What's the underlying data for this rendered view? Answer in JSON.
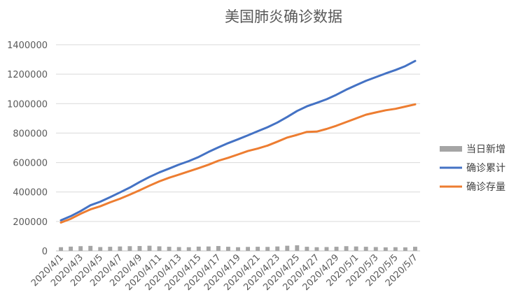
{
  "chart_data": {
    "type": "line",
    "title": "美国肺炎确诊数据",
    "xlabel": "",
    "ylabel": "",
    "ylim": [
      0,
      1400000
    ],
    "yticks": [
      0,
      200000,
      400000,
      600000,
      800000,
      1000000,
      1200000,
      1400000
    ],
    "ytick_labels": [
      "0",
      "200000",
      "400000",
      "600000",
      "800000",
      "1000000",
      "1200000",
      "1400000"
    ],
    "grid": "horizontal",
    "legend_position": "right",
    "x": [
      "2020/4/1",
      "2020/4/2",
      "2020/4/3",
      "2020/4/4",
      "2020/4/5",
      "2020/4/6",
      "2020/4/7",
      "2020/4/8",
      "2020/4/9",
      "2020/4/10",
      "2020/4/11",
      "2020/4/12",
      "2020/4/13",
      "2020/4/14",
      "2020/4/15",
      "2020/4/16",
      "2020/4/17",
      "2020/4/18",
      "2020/4/19",
      "2020/4/20",
      "2020/4/21",
      "2020/4/22",
      "2020/4/23",
      "2020/4/24",
      "2020/4/25",
      "2020/4/26",
      "2020/4/27",
      "2020/4/28",
      "2020/4/29",
      "2020/4/30",
      "2020/5/1",
      "2020/5/2",
      "2020/5/3",
      "2020/5/4",
      "2020/5/5",
      "2020/5/6",
      "2020/5/7"
    ],
    "x_tick_labels": [
      "2020/4/1",
      "2020/4/3",
      "2020/4/5",
      "2020/4/7",
      "2020/4/9",
      "2020/4/11",
      "2020/4/13",
      "2020/4/15",
      "2020/4/17",
      "2020/4/19",
      "2020/4/21",
      "2020/4/23",
      "2020/4/25",
      "2020/4/27",
      "2020/4/29",
      "2020/5/1",
      "2020/5/3",
      "2020/5/5",
      "2020/5/7"
    ],
    "series": [
      {
        "name": "当日新增",
        "type": "bar",
        "color": "#a5a5a5",
        "values": [
          25000,
          29000,
          32000,
          34000,
          26000,
          28000,
          30000,
          32000,
          33000,
          35000,
          31000,
          28000,
          26000,
          25000,
          29000,
          30000,
          33000,
          28000,
          25000,
          27000,
          28000,
          27000,
          30000,
          35000,
          38000,
          28000,
          25000,
          26000,
          28000,
          32000,
          30000,
          28000,
          26000,
          24000,
          25000,
          24000,
          28000
        ]
      },
      {
        "name": "确诊累计",
        "type": "line",
        "color": "#4472c4",
        "values": [
          208000,
          236000,
          270000,
          310000,
          334000,
          365000,
          397000,
          430000,
          468000,
          502000,
          533000,
          559000,
          586000,
          610000,
          638000,
          672000,
          703000,
          732000,
          758000,
          785000,
          813000,
          840000,
          872000,
          910000,
          950000,
          982000,
          1005000,
          1030000,
          1060000,
          1095000,
          1125000,
          1155000,
          1180000,
          1205000,
          1228000,
          1255000,
          1290000
        ]
      },
      {
        "name": "确诊存量",
        "type": "line",
        "color": "#ed7d31",
        "values": [
          192000,
          218000,
          252000,
          282000,
          303000,
          330000,
          354000,
          382000,
          412000,
          443000,
          472000,
          497000,
          518000,
          540000,
          562000,
          585000,
          612000,
          632000,
          655000,
          678000,
          695000,
          715000,
          742000,
          770000,
          788000,
          808000,
          810000,
          828000,
          850000,
          875000,
          900000,
          925000,
          940000,
          955000,
          965000,
          980000,
          995000
        ]
      }
    ]
  }
}
